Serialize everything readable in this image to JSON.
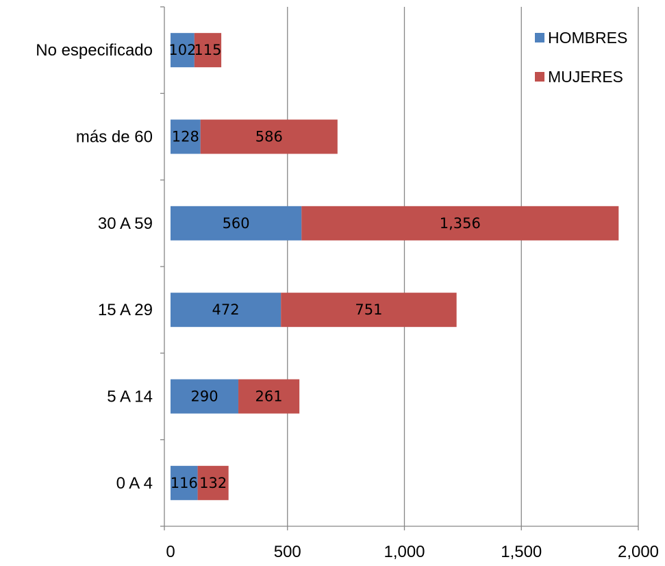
{
  "chart_data": {
    "type": "bar",
    "orientation": "horizontal",
    "stacked": true,
    "categories": [
      "0 A 4",
      "5 A 14",
      "15 A 29",
      "30 A 59",
      "más de 60",
      "No especificado"
    ],
    "series": [
      {
        "name": "HOMBRES",
        "color": "#4F81BD",
        "values": [
          116,
          290,
          472,
          560,
          128,
          102
        ],
        "labels": [
          "116",
          "290",
          "472",
          "560",
          "128",
          "102"
        ]
      },
      {
        "name": "MUJERES",
        "color": "#C0504D",
        "values": [
          132,
          261,
          751,
          1356,
          586,
          115
        ],
        "labels": [
          "132",
          "261",
          "751",
          "1,356",
          "586",
          "115"
        ]
      }
    ],
    "xlim": [
      0,
      2000
    ],
    "xticks": [
      0,
      500,
      1000,
      1500,
      2000
    ],
    "xtick_labels": [
      "0",
      "500",
      "1,000",
      "1,500",
      "2,000"
    ],
    "grid": "vertical major gridlines",
    "legend_position": "top-right"
  }
}
